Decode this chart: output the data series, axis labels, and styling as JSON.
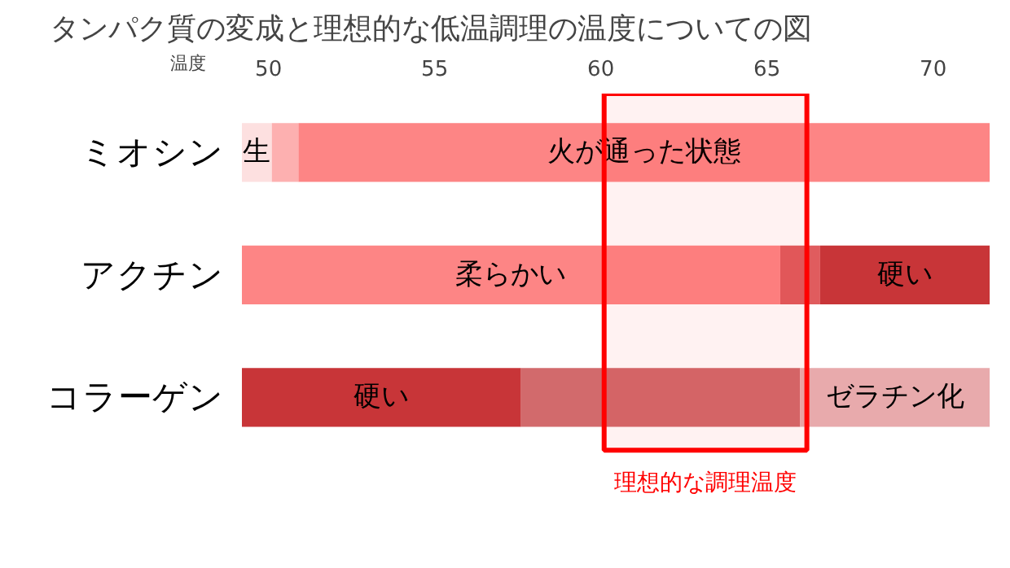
{
  "chart_data": {
    "type": "bar",
    "orientation": "horizontal",
    "title": "タンパク質の変成と理想的な低温調理の温度についての図",
    "xlabel": "温度",
    "categories": [
      "ミオシン",
      "アクチン",
      "コラーゲン"
    ],
    "series": [
      {
        "base": [
          49.2,
          49.2,
          49.2
        ],
        "values": [
          0.9,
          16.2,
          8.4
        ],
        "colors": [
          "#fde0e0",
          "#fd8585",
          "#c83538"
        ],
        "value_labels": [
          "生",
          "柔らかい",
          "硬い"
        ]
      },
      {
        "base": [
          50.1,
          65.4,
          57.6
        ],
        "values": [
          0.8,
          1.2,
          8.4
        ],
        "colors": [
          "#fdb0b0",
          "#e05c5e",
          "#d26a6c"
        ],
        "value_labels": [
          null,
          null,
          null
        ]
      },
      {
        "base": [
          50.9,
          66.6,
          66.0
        ],
        "values": [
          20.8,
          5.1,
          5.7
        ],
        "colors": [
          "#fd8585",
          "#c83538",
          "#e8aaac"
        ],
        "value_labels": [
          "火が通った状態",
          "硬い",
          "ゼラチン化"
        ]
      }
    ],
    "xlim": [
      49.2,
      71.7
    ],
    "xticks": [
      50,
      55,
      60,
      65,
      70
    ],
    "bands": [
      {
        "axis": "x",
        "from": 60.1,
        "to": 66.2,
        "label": "理想的な調理温度",
        "color": "#ff0000"
      }
    ]
  }
}
